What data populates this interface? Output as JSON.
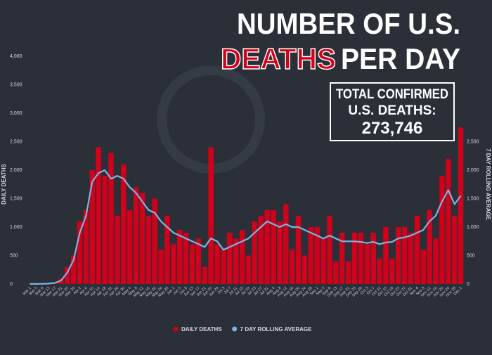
{
  "chart_data": {
    "type": "bar",
    "title_line1": "NUMBER OF U.S.",
    "title_highlight": "DEATHS",
    "title_rest": "PER DAY",
    "box_line1": "TOTAL CONFIRMED",
    "box_line2": "U.S. DEATHS:",
    "box_total": "273,746",
    "ylabel": "DAILY DEATHS",
    "y2label": "7 DAY ROLLING AVERAGE",
    "categories": [
      "Mar 1",
      "Mar 5",
      "Mar 9",
      "Mar 13",
      "Mar 17",
      "Mar 21",
      "Mar 25",
      "Mar 29",
      "Apr 2",
      "Apr 6",
      "Apr 10",
      "Apr 14",
      "Apr 18",
      "Apr 22",
      "Apr 26",
      "Apr 30",
      "May 4",
      "May 8",
      "May 12",
      "May 16",
      "May 20",
      "May 24",
      "May 28",
      "Jun 1",
      "Jun 5",
      "Jun 9",
      "Jun 13",
      "Jun 17",
      "Jun 21",
      "Jun 25",
      "Jun 29",
      "Jul 3",
      "Jul 7",
      "Jul 11",
      "Jul 15",
      "Jul 19",
      "Jul 23",
      "Jul 27",
      "Jul 31",
      "Aug 4",
      "Aug 8",
      "Aug 12",
      "Aug 16",
      "Aug 20",
      "Aug 24",
      "Aug 28",
      "Sep 1",
      "Sep 5",
      "Sep 9",
      "Sep 13",
      "Sep 17",
      "Sep 21",
      "Sep 25",
      "Sep 29",
      "Oct 3",
      "Oct 7",
      "Oct 11",
      "Oct 15",
      "Oct 19",
      "Oct 23",
      "Oct 27",
      "Oct 31",
      "Nov 4",
      "Nov 8",
      "Nov 12",
      "Nov 16",
      "Nov 20",
      "Nov 24",
      "Nov 28",
      "Dec 2"
    ],
    "series": [
      {
        "name": "DAILY DEATHS",
        "color": "#d0021b",
        "values": [
          1,
          2,
          5,
          10,
          30,
          100,
          300,
          500,
          1100,
          1300,
          2000,
          2400,
          1900,
          2300,
          1200,
          2100,
          1300,
          1700,
          1600,
          1200,
          1500,
          600,
          1200,
          700,
          950,
          900,
          700,
          800,
          300,
          2400,
          700,
          600,
          900,
          800,
          950,
          500,
          1100,
          1200,
          1300,
          1300,
          1100,
          1400,
          600,
          1200,
          500,
          1000,
          1000,
          800,
          1200,
          400,
          900,
          400,
          900,
          900,
          700,
          900,
          450,
          1000,
          450,
          1000,
          1000,
          900,
          1200,
          600,
          1300,
          800,
          1900,
          2200,
          1200,
          2750
        ]
      },
      {
        "name": "7 DAY ROLLING AVERAGE",
        "color": "#7fb3e0",
        "axis": "y2",
        "values": [
          0,
          1,
          3,
          7,
          18,
          60,
          200,
          420,
          900,
          1200,
          1800,
          1950,
          2000,
          1850,
          1900,
          1850,
          1700,
          1600,
          1450,
          1300,
          1250,
          1100,
          1000,
          900,
          850,
          800,
          750,
          700,
          650,
          800,
          750,
          600,
          650,
          700,
          750,
          800,
          900,
          1000,
          1100,
          1050,
          1000,
          1050,
          1000,
          1000,
          950,
          900,
          850,
          800,
          850,
          800,
          750,
          750,
          750,
          740,
          720,
          740,
          700,
          730,
          740,
          800,
          820,
          850,
          900,
          950,
          1100,
          1200,
          1450,
          1650,
          1400,
          1550
        ]
      }
    ],
    "ylim": [
      0,
      4000
    ],
    "yticks": [
      0,
      500,
      {
        "value": 1000,
        "label": "1,000"
      },
      {
        "value": 1500,
        "label": "1,500"
      },
      {
        "value": 2000,
        "label": "2,000"
      },
      {
        "value": 2500,
        "label": "2,500"
      },
      {
        "value": 3000,
        "label": "3,000"
      },
      {
        "value": 3500,
        "label": "3,500"
      },
      {
        "value": 4000,
        "label": "4,000"
      }
    ],
    "y2lim": [
      0,
      4000
    ],
    "y2ticks": [
      0,
      500,
      {
        "value": 1000,
        "label": "1,000"
      },
      {
        "value": 1500,
        "label": "1,500"
      },
      {
        "value": 2000,
        "label": "2,000"
      },
      {
        "value": 2500,
        "label": "2,500"
      }
    ],
    "grid": false
  }
}
